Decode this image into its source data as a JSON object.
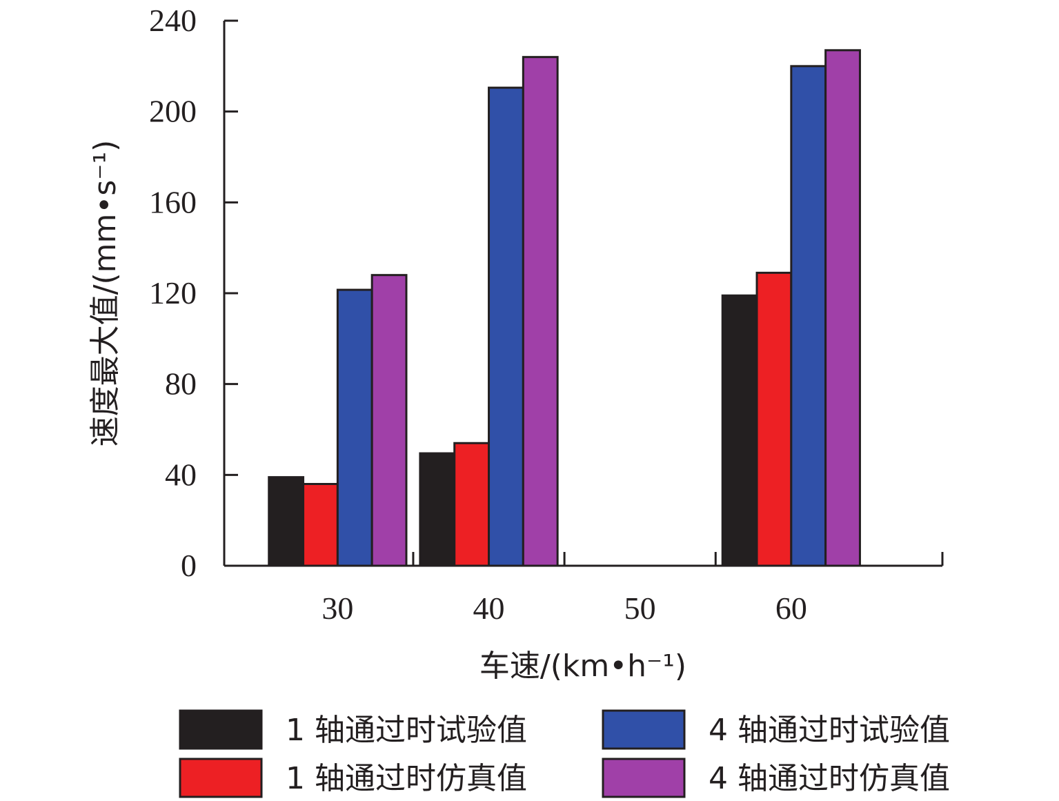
{
  "chart_data": {
    "type": "bar",
    "xlabel": "车速/(km•h⁻¹)",
    "ylabel": "速度最大值/(mm•s⁻¹)",
    "categories": [
      "30",
      "40",
      "50",
      "60"
    ],
    "ylim": [
      0,
      240
    ],
    "yticks": [
      "0",
      "40",
      "80",
      "120",
      "160",
      "200",
      "240"
    ],
    "grid": false,
    "legend_placement": "bottom",
    "series": [
      {
        "name": "1 轴通过时试验值",
        "color": "#231f20",
        "values": [
          39,
          49.5,
          null,
          119
        ]
      },
      {
        "name": "1 轴通过时仿真值",
        "color": "#ed2024",
        "values": [
          36,
          54,
          null,
          129
        ]
      },
      {
        "name": "4 轴通过时试验值",
        "color": "#3050a8",
        "values": [
          121.5,
          210.5,
          null,
          220
        ]
      },
      {
        "name": "4 轴通过时仿真值",
        "color": "#a040a8",
        "values": [
          128,
          224,
          null,
          227
        ]
      }
    ]
  }
}
